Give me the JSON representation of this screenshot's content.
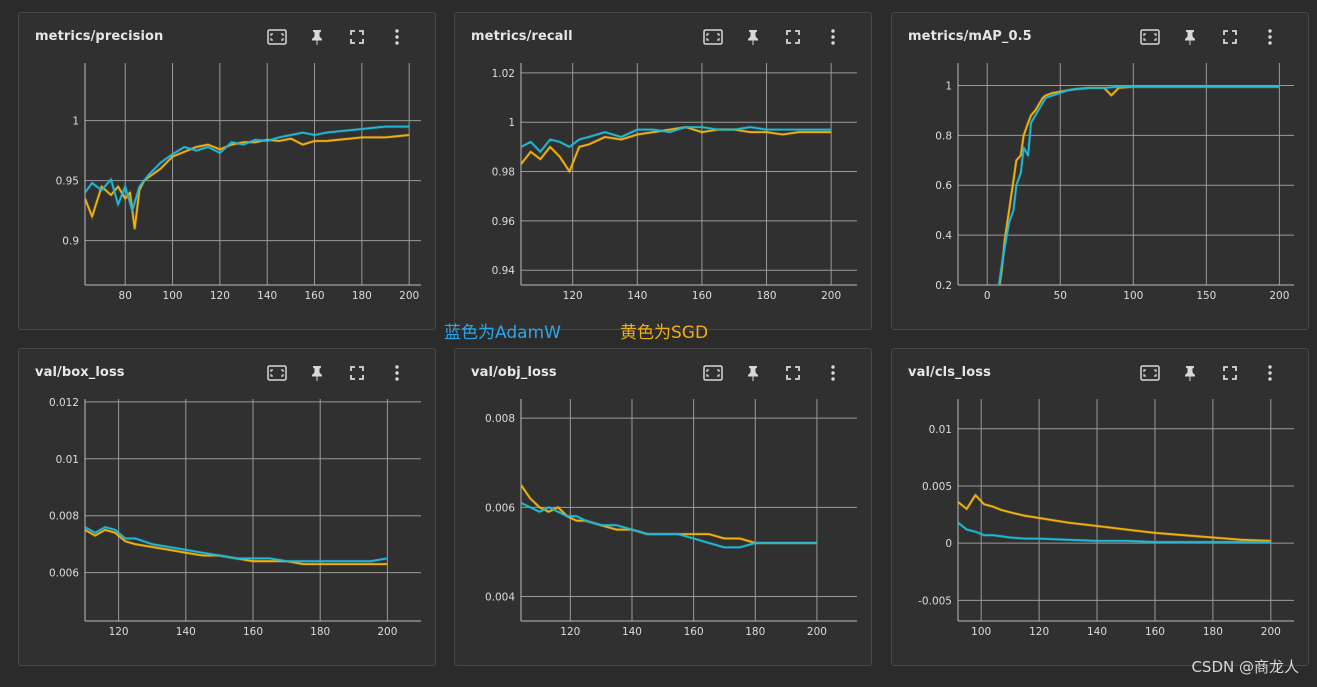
{
  "colors": {
    "adamw": "#1fb8d6",
    "sgd": "#f2b00f",
    "bg": "#2b2b2b",
    "panel": "#303030",
    "grid": "#9a9a9a"
  },
  "icons": [
    "fit-domain-icon",
    "pin-icon",
    "fullscreen-icon",
    "more-vert-icon"
  ],
  "annotations": {
    "adamw": "蓝色为AdamW",
    "sgd": "黄色为SGD"
  },
  "watermark": "CSDN @商龙人",
  "chart_data": [
    {
      "id": "precision",
      "title": "metrics/precision",
      "type": "line",
      "xlim": [
        63,
        205
      ],
      "ylim": [
        0.863,
        1.048
      ],
      "xticks": [
        80,
        100,
        120,
        140,
        160,
        180,
        200
      ],
      "yticks": [
        0.9,
        0.95,
        1
      ],
      "series": [
        {
          "name": "AdamW",
          "x": [
            63,
            66,
            70,
            74,
            77,
            80,
            83,
            86,
            90,
            95,
            100,
            105,
            110,
            115,
            120,
            125,
            130,
            135,
            140,
            145,
            150,
            155,
            160,
            165,
            170,
            175,
            180,
            185,
            190,
            195,
            200
          ],
          "y": [
            0.94,
            0.948,
            0.942,
            0.951,
            0.93,
            0.945,
            0.925,
            0.945,
            0.955,
            0.965,
            0.972,
            0.978,
            0.975,
            0.978,
            0.973,
            0.982,
            0.98,
            0.984,
            0.983,
            0.986,
            0.988,
            0.99,
            0.988,
            0.99,
            0.991,
            0.992,
            0.993,
            0.994,
            0.995,
            0.995,
            0.995
          ]
        },
        {
          "name": "SGD",
          "x": [
            63,
            66,
            70,
            74,
            77,
            80,
            82,
            84,
            86,
            88,
            90,
            95,
            100,
            105,
            110,
            115,
            120,
            125,
            130,
            135,
            140,
            145,
            150,
            155,
            160,
            165,
            170,
            175,
            180,
            185,
            190,
            195,
            200
          ],
          "y": [
            0.935,
            0.92,
            0.945,
            0.938,
            0.945,
            0.935,
            0.94,
            0.91,
            0.942,
            0.95,
            0.953,
            0.96,
            0.97,
            0.974,
            0.978,
            0.98,
            0.976,
            0.98,
            0.982,
            0.982,
            0.984,
            0.983,
            0.985,
            0.98,
            0.983,
            0.983,
            0.984,
            0.985,
            0.986,
            0.986,
            0.986,
            0.987,
            0.988
          ]
        }
      ]
    },
    {
      "id": "recall",
      "title": "metrics/recall",
      "type": "line",
      "xlim": [
        104,
        208
      ],
      "ylim": [
        0.934,
        1.024
      ],
      "xticks": [
        120,
        140,
        160,
        180,
        200
      ],
      "yticks": [
        0.94,
        0.96,
        0.98,
        1,
        1.02
      ],
      "series": [
        {
          "name": "AdamW",
          "x": [
            104,
            107,
            110,
            113,
            116,
            119,
            122,
            125,
            130,
            135,
            140,
            145,
            150,
            155,
            160,
            165,
            170,
            175,
            180,
            185,
            190,
            195,
            200
          ],
          "y": [
            0.99,
            0.992,
            0.988,
            0.993,
            0.992,
            0.99,
            0.993,
            0.994,
            0.996,
            0.994,
            0.997,
            0.997,
            0.996,
            0.998,
            0.998,
            0.997,
            0.997,
            0.998,
            0.997,
            0.997,
            0.997,
            0.997,
            0.997
          ]
        },
        {
          "name": "SGD",
          "x": [
            104,
            107,
            110,
            113,
            116,
            119,
            122,
            125,
            130,
            135,
            140,
            145,
            150,
            155,
            160,
            165,
            170,
            175,
            180,
            185,
            190,
            195,
            200
          ],
          "y": [
            0.983,
            0.988,
            0.985,
            0.99,
            0.986,
            0.98,
            0.99,
            0.991,
            0.994,
            0.993,
            0.995,
            0.996,
            0.997,
            0.998,
            0.996,
            0.997,
            0.997,
            0.996,
            0.996,
            0.995,
            0.996,
            0.996,
            0.996
          ]
        }
      ]
    },
    {
      "id": "map05",
      "title": "metrics/mAP_0.5",
      "type": "line",
      "xlim": [
        -20,
        210
      ],
      "ylim": [
        0.2,
        1.09
      ],
      "xticks": [
        0,
        50,
        100,
        150,
        200
      ],
      "yticks": [
        0.2,
        0.4,
        0.6,
        0.8,
        1
      ],
      "series": [
        {
          "name": "AdamW",
          "x": [
            5,
            8,
            10,
            12,
            15,
            18,
            20,
            23,
            25,
            28,
            30,
            33,
            35,
            38,
            40,
            45,
            50,
            55,
            60,
            70,
            80,
            90,
            100,
            150,
            200
          ],
          "y": [
            0.15,
            0.2,
            0.28,
            0.35,
            0.45,
            0.5,
            0.6,
            0.65,
            0.75,
            0.72,
            0.85,
            0.88,
            0.9,
            0.93,
            0.95,
            0.96,
            0.97,
            0.98,
            0.985,
            0.99,
            0.99,
            0.995,
            0.995,
            0.995,
            0.995
          ]
        },
        {
          "name": "SGD",
          "x": [
            5,
            8,
            10,
            12,
            15,
            18,
            20,
            23,
            25,
            28,
            30,
            33,
            35,
            38,
            40,
            45,
            50,
            55,
            60,
            70,
            80,
            85,
            90,
            100,
            150,
            200
          ],
          "y": [
            0.12,
            0.18,
            0.26,
            0.38,
            0.5,
            0.62,
            0.7,
            0.72,
            0.8,
            0.85,
            0.88,
            0.9,
            0.92,
            0.95,
            0.96,
            0.97,
            0.975,
            0.98,
            0.985,
            0.99,
            0.99,
            0.96,
            0.99,
            0.995,
            0.995,
            0.995
          ]
        }
      ]
    },
    {
      "id": "box_loss",
      "title": "val/box_loss",
      "type": "line",
      "xlim": [
        110,
        210
      ],
      "ylim": [
        0.0043,
        0.0121
      ],
      "xticks": [
        120,
        140,
        160,
        180,
        200
      ],
      "yticks": [
        0.006,
        0.008,
        0.01,
        0.012
      ],
      "series": [
        {
          "name": "AdamW",
          "x": [
            110,
            113,
            116,
            119,
            122,
            125,
            130,
            135,
            140,
            145,
            150,
            155,
            160,
            165,
            170,
            175,
            180,
            185,
            190,
            195,
            200
          ],
          "y": [
            0.0076,
            0.0074,
            0.0076,
            0.0075,
            0.0072,
            0.0072,
            0.007,
            0.0069,
            0.0068,
            0.0067,
            0.0066,
            0.0065,
            0.0065,
            0.0065,
            0.0064,
            0.0064,
            0.0064,
            0.0064,
            0.0064,
            0.0064,
            0.0065
          ]
        },
        {
          "name": "SGD",
          "x": [
            110,
            113,
            116,
            119,
            122,
            125,
            130,
            135,
            140,
            145,
            150,
            155,
            160,
            165,
            170,
            175,
            180,
            185,
            190,
            195,
            200
          ],
          "y": [
            0.0075,
            0.0073,
            0.0075,
            0.0074,
            0.0071,
            0.007,
            0.0069,
            0.0068,
            0.0067,
            0.0066,
            0.0066,
            0.0065,
            0.0064,
            0.0064,
            0.0064,
            0.0063,
            0.0063,
            0.0063,
            0.0063,
            0.0063,
            0.0063
          ]
        }
      ]
    },
    {
      "id": "obj_loss",
      "title": "val/obj_loss",
      "type": "line",
      "xlim": [
        104,
        213
      ],
      "ylim": [
        0.00345,
        0.00843
      ],
      "xticks": [
        120,
        140,
        160,
        180,
        200
      ],
      "yticks": [
        0.004,
        0.006,
        0.008
      ],
      "series": [
        {
          "name": "AdamW",
          "x": [
            104,
            107,
            110,
            113,
            116,
            119,
            122,
            125,
            130,
            135,
            140,
            145,
            150,
            155,
            160,
            165,
            170,
            175,
            180,
            185,
            190,
            195,
            200
          ],
          "y": [
            0.0061,
            0.006,
            0.0059,
            0.006,
            0.0059,
            0.0058,
            0.0058,
            0.0057,
            0.0056,
            0.0056,
            0.0055,
            0.0054,
            0.0054,
            0.0054,
            0.0053,
            0.0052,
            0.0051,
            0.0051,
            0.0052,
            0.0052,
            0.0052,
            0.0052,
            0.0052
          ]
        },
        {
          "name": "SGD",
          "x": [
            104,
            107,
            110,
            113,
            116,
            119,
            122,
            125,
            130,
            135,
            140,
            145,
            150,
            155,
            160,
            165,
            170,
            175,
            180,
            185,
            190,
            195,
            200
          ],
          "y": [
            0.0065,
            0.0062,
            0.006,
            0.0059,
            0.006,
            0.0058,
            0.0057,
            0.0057,
            0.0056,
            0.0055,
            0.0055,
            0.0054,
            0.0054,
            0.0054,
            0.0054,
            0.0054,
            0.0053,
            0.0053,
            0.0052,
            0.0052,
            0.0052,
            0.0052,
            0.0052
          ]
        }
      ]
    },
    {
      "id": "cls_loss",
      "title": "val/cls_loss",
      "type": "line",
      "xlim": [
        92,
        208
      ],
      "ylim": [
        -0.0068,
        0.0126
      ],
      "xticks": [
        100,
        120,
        140,
        160,
        180,
        200
      ],
      "yticks": [
        -0.005,
        0,
        0.005,
        0.01
      ],
      "series": [
        {
          "name": "AdamW",
          "x": [
            92,
            95,
            98,
            101,
            104,
            107,
            110,
            115,
            120,
            130,
            140,
            150,
            160,
            170,
            180,
            190,
            200
          ],
          "y": [
            0.0018,
            0.0012,
            0.001,
            0.0007,
            0.0007,
            0.0006,
            0.0005,
            0.0004,
            0.0004,
            0.0003,
            0.0002,
            0.0002,
            0.0001,
            0.0001,
            0.0001,
            0.0001,
            0.0001
          ]
        },
        {
          "name": "SGD",
          "x": [
            92,
            95,
            98,
            101,
            104,
            107,
            110,
            115,
            120,
            130,
            140,
            150,
            160,
            170,
            180,
            190,
            200
          ],
          "y": [
            0.0036,
            0.003,
            0.0042,
            0.0034,
            0.0032,
            0.0029,
            0.0027,
            0.0024,
            0.0022,
            0.0018,
            0.0015,
            0.0012,
            0.0009,
            0.0007,
            0.0005,
            0.0003,
            0.0002
          ]
        }
      ]
    }
  ]
}
